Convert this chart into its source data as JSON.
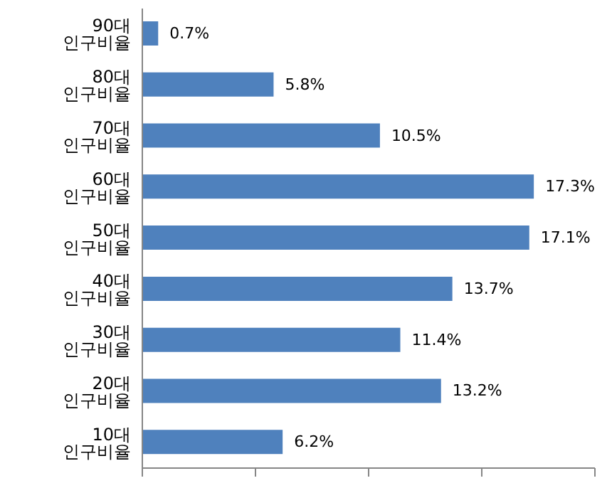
{
  "chart_data": {
    "type": "bar",
    "orientation": "horizontal",
    "categories": [
      "90대 인구비율",
      "80대 인구비율",
      "70대 인구비율",
      "60대 인구비율",
      "50대 인구비율",
      "40대 인구비율",
      "30대 인구비율",
      "20대 인구비율",
      "10대 인구비율"
    ],
    "values": [
      0.7,
      5.8,
      10.5,
      17.3,
      17.1,
      13.7,
      11.4,
      13.2,
      6.2
    ],
    "value_labels": [
      "0.7%",
      "5.8%",
      "10.5%",
      "17.3%",
      "17.1%",
      "13.7%",
      "11.4%",
      "13.2%",
      "6.2%"
    ],
    "color": "#4f81bd",
    "xlim": [
      0,
      20
    ],
    "xticks": [
      {
        "value": 0,
        "label": null
      },
      {
        "value": 5,
        "label": null
      },
      {
        "value": 10,
        "label": null
      },
      {
        "value": 15,
        "label": null
      },
      {
        "value": 20,
        "label": null
      }
    ],
    "tick_labels": "y"
  }
}
